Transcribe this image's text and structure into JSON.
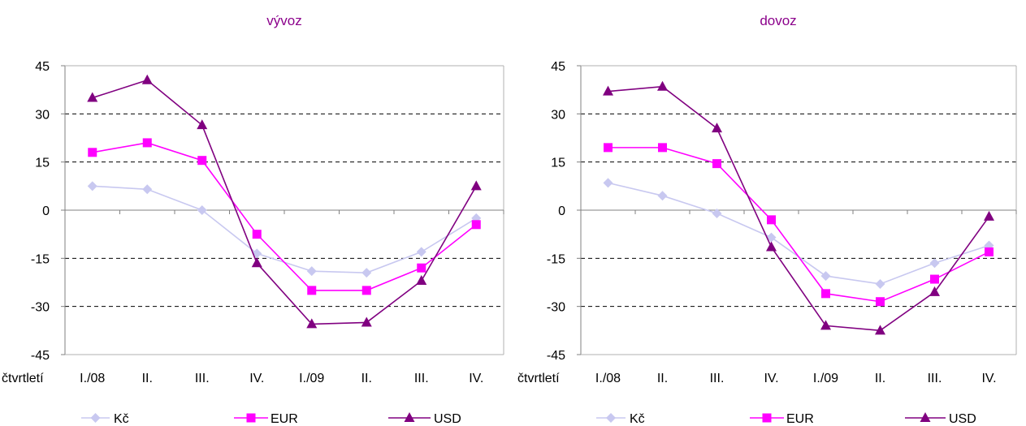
{
  "colors": {
    "title": "#8B008B",
    "kc": "#C8C8F0",
    "eur": "#FF00FF",
    "usd": "#800080",
    "grid": "#000000",
    "axis": "#808080"
  },
  "chart_data": [
    {
      "type": "line",
      "title": "vývoz",
      "x_prefix_label": "čtvrtletí",
      "categories": [
        "I./08",
        "II.",
        "III.",
        "IV.",
        "I./09",
        "II.",
        "III.",
        "IV."
      ],
      "ylim": [
        -45,
        45
      ],
      "yticks": [
        45,
        30,
        15,
        0,
        -15,
        -30,
        -45
      ],
      "grid": "dashed",
      "legend_position": "bottom",
      "series": [
        {
          "name": "Kč",
          "marker": "diamond",
          "values": [
            7.5,
            6.5,
            0,
            -13.5,
            -19,
            -19.5,
            -13,
            -2.5
          ]
        },
        {
          "name": "EUR",
          "marker": "square",
          "values": [
            18,
            21,
            15.5,
            -7.5,
            -25,
            -25,
            -18,
            -4.5
          ]
        },
        {
          "name": "USD",
          "marker": "triangle",
          "values": [
            35,
            40.5,
            26.5,
            -16.5,
            -35.5,
            -35,
            -22,
            7.5
          ]
        }
      ]
    },
    {
      "type": "line",
      "title": "dovoz",
      "x_prefix_label": "čtvrtletí",
      "categories": [
        "I./08",
        "II.",
        "III.",
        "IV.",
        "I./09",
        "II.",
        "III.",
        "IV."
      ],
      "ylim": [
        -45,
        45
      ],
      "yticks": [
        45,
        30,
        15,
        0,
        -15,
        -30,
        -45
      ],
      "grid": "dashed",
      "legend_position": "bottom",
      "series": [
        {
          "name": "Kč",
          "marker": "diamond",
          "values": [
            8.5,
            4.5,
            -1,
            -8.5,
            -20.5,
            -23,
            -16.5,
            -11
          ]
        },
        {
          "name": "EUR",
          "marker": "square",
          "values": [
            19.5,
            19.5,
            14.5,
            -3,
            -26,
            -28.5,
            -21.5,
            -13
          ]
        },
        {
          "name": "USD",
          "marker": "triangle",
          "values": [
            37,
            38.5,
            25.5,
            -11.5,
            -36,
            -37.5,
            -25.5,
            -2
          ]
        }
      ]
    }
  ]
}
